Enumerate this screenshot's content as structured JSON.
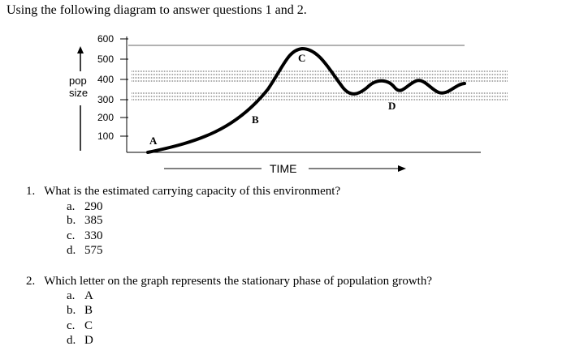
{
  "intro": "Using the following diagram to answer questions 1 and 2.",
  "diagram": {
    "y_ticks": [
      "600",
      "500",
      "400",
      "300",
      "200",
      "100"
    ],
    "y_label_line1": "pop",
    "y_label_line2": "size",
    "points": {
      "A": "A",
      "B": "B",
      "C": "C",
      "D": "D"
    },
    "x_label": "TIME"
  },
  "questions": [
    {
      "number": "1.",
      "text": "What is the estimated carrying capacity of this environment?",
      "options": [
        {
          "letter": "a.",
          "text": "290"
        },
        {
          "letter": "b.",
          "text": "385"
        },
        {
          "letter": "c.",
          "text": "330"
        },
        {
          "letter": "d.",
          "text": "575"
        }
      ]
    },
    {
      "number": "2.",
      "text": "Which letter on the graph represents the stationary phase of population growth?",
      "options": [
        {
          "letter": "a.",
          "text": "A"
        },
        {
          "letter": "b.",
          "text": "B"
        },
        {
          "letter": "c.",
          "text": "C"
        },
        {
          "letter": "d.",
          "text": "D"
        }
      ]
    }
  ]
}
